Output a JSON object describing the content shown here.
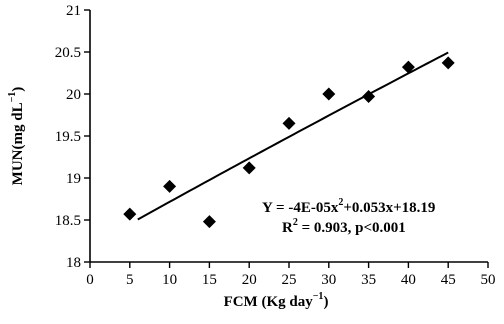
{
  "chart_data": {
    "type": "scatter",
    "xlabel": "FCM (Kg day",
    "xlabel_sup": "−1",
    "xlabel_tail": ")",
    "ylabel": "MUN(mg dL",
    "ylabel_sup": "−1",
    "ylabel_tail": ")",
    "xlim": [
      0,
      50
    ],
    "ylim": [
      18,
      21
    ],
    "x_ticks": [
      0,
      5,
      10,
      15,
      20,
      25,
      30,
      35,
      40,
      45,
      50
    ],
    "x_tick_labels": [
      "0",
      "5",
      "10",
      "15",
      "20",
      "25",
      "30",
      "35",
      "40",
      "45",
      "50"
    ],
    "y_ticks": [
      18,
      18.5,
      19,
      19.5,
      20,
      20.5,
      21
    ],
    "y_tick_labels": [
      "18",
      "18.5",
      "19",
      "19.5",
      "20",
      "20.5",
      "21"
    ],
    "grid": false,
    "legend": "none",
    "marker_shape": "diamond",
    "marker_color": "#000000",
    "points": [
      {
        "x": 5,
        "y": 18.57
      },
      {
        "x": 10,
        "y": 18.9
      },
      {
        "x": 15,
        "y": 18.48
      },
      {
        "x": 20,
        "y": 19.12
      },
      {
        "x": 25,
        "y": 19.65
      },
      {
        "x": 30,
        "y": 20.0
      },
      {
        "x": 35,
        "y": 19.97
      },
      {
        "x": 40,
        "y": 20.32
      },
      {
        "x": 45,
        "y": 20.37
      }
    ],
    "trendline": {
      "type": "polynomial",
      "order": 2,
      "coefficients": {
        "a": -4e-05,
        "b": 0.053,
        "c": 18.19
      },
      "x_start": 6,
      "x_end": 45,
      "color": "#000000"
    },
    "annotation": {
      "equation_prefix": "Y = -4E-05x",
      "equation_sup": "2",
      "equation_suffix": "+0.053x+18.19",
      "r2_prefix": "R",
      "r2_sup": "2",
      "r2_suffix": " = 0.903, p<0.001"
    }
  }
}
